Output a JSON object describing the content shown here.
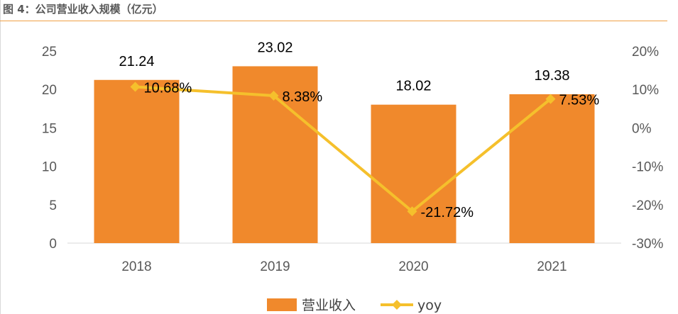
{
  "header": {
    "title": "图 4：公司营业收入规模（亿元）"
  },
  "chart_data": {
    "type": "bar",
    "categories": [
      "2018",
      "2019",
      "2020",
      "2021"
    ],
    "series": [
      {
        "name": "营业收入",
        "type": "bar",
        "axis": "left",
        "values": [
          21.24,
          23.02,
          18.02,
          19.38
        ],
        "labels": [
          "21.24",
          "23.02",
          "18.02",
          "19.38"
        ],
        "color": "#f0892c"
      },
      {
        "name": "yoy",
        "type": "line",
        "axis": "right",
        "values": [
          10.68,
          8.38,
          -21.72,
          7.53
        ],
        "labels": [
          "10.68%",
          "8.38%",
          "-21.72%",
          "7.53%"
        ],
        "color": "#f5c02c"
      }
    ],
    "y_left": {
      "min": 0,
      "max": 25,
      "ticks": [
        "0",
        "5",
        "10",
        "15",
        "20",
        "25"
      ]
    },
    "y_right": {
      "min": -30,
      "max": 20,
      "ticks": [
        "-30%",
        "-20%",
        "-10%",
        "0%",
        "10%",
        "20%"
      ]
    },
    "legend": "bottom",
    "grid": false
  }
}
